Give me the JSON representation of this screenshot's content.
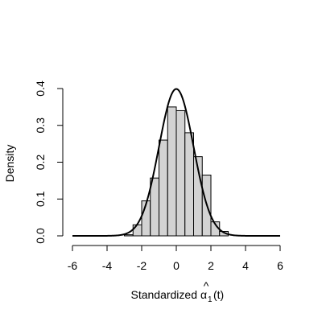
{
  "chart_data": {
    "type": "bar",
    "ylabel": "Density",
    "xlabel_prefix": "Standardized",
    "xlabel_symbol": "α",
    "xlabel_subscript": "1",
    "xlabel_suffix": "(t)",
    "xlim": [
      -6,
      6
    ],
    "ylim": [
      0,
      0.4
    ],
    "x_ticks": [
      -6,
      -4,
      -2,
      0,
      2,
      4,
      6
    ],
    "y_ticks": [
      0.0,
      0.1,
      0.2,
      0.3,
      0.4
    ],
    "x_tick_labels": [
      "-6",
      "-4",
      "-2",
      "0",
      "2",
      "4",
      "6"
    ],
    "y_tick_labels": [
      "0.0",
      "0.1",
      "0.2",
      "0.3",
      "0.4"
    ],
    "bins": [
      {
        "x0": -3.0,
        "x1": -2.5,
        "density": 0.003
      },
      {
        "x0": -2.5,
        "x1": -2.0,
        "density": 0.03
      },
      {
        "x0": -2.0,
        "x1": -1.5,
        "density": 0.095
      },
      {
        "x0": -1.5,
        "x1": -1.0,
        "density": 0.157
      },
      {
        "x0": -1.0,
        "x1": -0.5,
        "density": 0.26
      },
      {
        "x0": -0.5,
        "x1": 0.0,
        "density": 0.35
      },
      {
        "x0": 0.0,
        "x1": 0.5,
        "density": 0.34
      },
      {
        "x0": 0.5,
        "x1": 1.0,
        "density": 0.28
      },
      {
        "x0": 1.0,
        "x1": 1.5,
        "density": 0.215
      },
      {
        "x0": 1.5,
        "x1": 2.0,
        "density": 0.165
      },
      {
        "x0": 2.0,
        "x1": 2.5,
        "density": 0.038
      },
      {
        "x0": 2.5,
        "x1": 3.0,
        "density": 0.012
      }
    ],
    "overlay_curve": {
      "type": "normal-density",
      "mean": 0,
      "sd": 1,
      "xrange": [
        -6,
        6
      ]
    },
    "grid": false
  }
}
